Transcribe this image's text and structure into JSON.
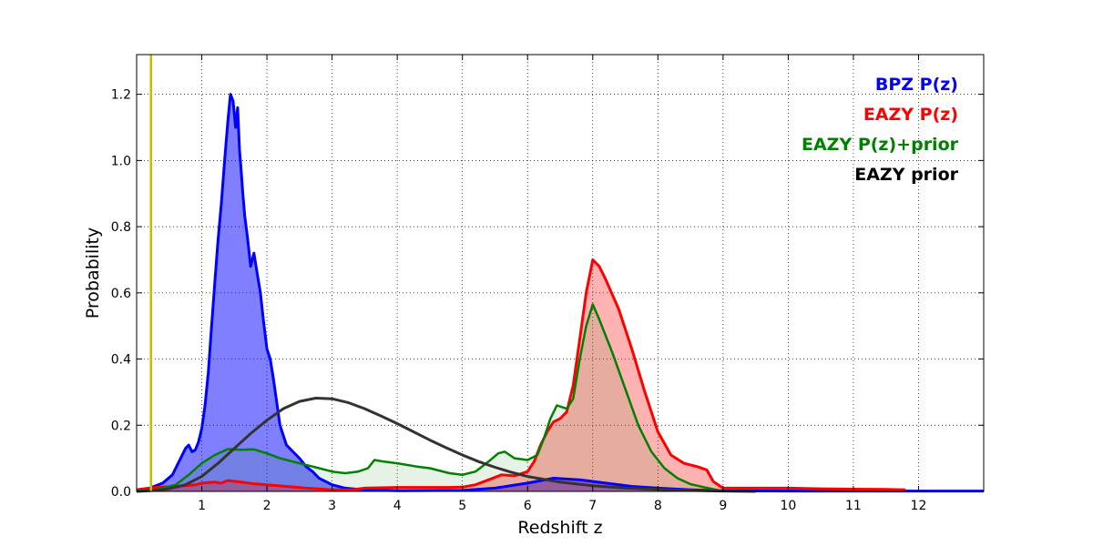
{
  "chart_data": {
    "type": "area",
    "xlabel": "Redshift z",
    "ylabel": "Probability",
    "xlim": [
      0,
      13
    ],
    "ylim": [
      0,
      1.32
    ],
    "x_ticks": [
      1,
      2,
      3,
      4,
      5,
      6,
      7,
      8,
      9,
      10,
      11,
      12
    ],
    "y_ticks": [
      0.0,
      0.2,
      0.4,
      0.6,
      0.8,
      1.0,
      1.2
    ],
    "y_tick_labels": [
      "0.0",
      "0.2",
      "0.4",
      "0.6",
      "0.8",
      "1.0",
      "1.2"
    ],
    "grid": true,
    "legend_placement": "top-right",
    "vertical_marker": {
      "x": 0.22,
      "color": "#bfbf00"
    },
    "series": [
      {
        "name": "BPZ P(z)",
        "color": "#0000ff",
        "fill": "#0000ff",
        "fill_opacity": 0.5,
        "stroke_width": 3,
        "points": [
          [
            0,
            0.005
          ],
          [
            0.2,
            0.01
          ],
          [
            0.4,
            0.025
          ],
          [
            0.55,
            0.05
          ],
          [
            0.65,
            0.09
          ],
          [
            0.75,
            0.13
          ],
          [
            0.8,
            0.14
          ],
          [
            0.85,
            0.12
          ],
          [
            0.9,
            0.125
          ],
          [
            0.95,
            0.15
          ],
          [
            1.0,
            0.19
          ],
          [
            1.05,
            0.26
          ],
          [
            1.1,
            0.36
          ],
          [
            1.15,
            0.5
          ],
          [
            1.2,
            0.63
          ],
          [
            1.25,
            0.76
          ],
          [
            1.3,
            0.87
          ],
          [
            1.35,
            1.0
          ],
          [
            1.4,
            1.12
          ],
          [
            1.44,
            1.2
          ],
          [
            1.48,
            1.18
          ],
          [
            1.52,
            1.1
          ],
          [
            1.55,
            1.16
          ],
          [
            1.58,
            1.03
          ],
          [
            1.6,
            0.98
          ],
          [
            1.63,
            0.9
          ],
          [
            1.66,
            0.83
          ],
          [
            1.7,
            0.77
          ],
          [
            1.75,
            0.68
          ],
          [
            1.8,
            0.72
          ],
          [
            1.85,
            0.66
          ],
          [
            1.9,
            0.6
          ],
          [
            1.95,
            0.51
          ],
          [
            2.0,
            0.43
          ],
          [
            2.05,
            0.4
          ],
          [
            2.1,
            0.34
          ],
          [
            2.15,
            0.27
          ],
          [
            2.2,
            0.2
          ],
          [
            2.3,
            0.14
          ],
          [
            2.4,
            0.12
          ],
          [
            2.5,
            0.1
          ],
          [
            2.6,
            0.075
          ],
          [
            2.7,
            0.06
          ],
          [
            2.8,
            0.04
          ],
          [
            3.0,
            0.02
          ],
          [
            3.2,
            0.01
          ],
          [
            3.5,
            0.005
          ],
          [
            4.0,
            0.002
          ],
          [
            5.0,
            0.003
          ],
          [
            5.5,
            0.01
          ],
          [
            6.0,
            0.025
          ],
          [
            6.4,
            0.04
          ],
          [
            6.8,
            0.035
          ],
          [
            7.2,
            0.025
          ],
          [
            7.6,
            0.015
          ],
          [
            8.0,
            0.01
          ],
          [
            8.5,
            0.005
          ],
          [
            9.0,
            0.002
          ],
          [
            10.0,
            0.001
          ],
          [
            13.0,
            0.001
          ]
        ]
      },
      {
        "name": "EAZY P(z)",
        "color": "#ff0000",
        "fill": "#ff0000",
        "fill_opacity": 0.3,
        "stroke_width": 3,
        "points": [
          [
            0,
            0.005
          ],
          [
            0.3,
            0.012
          ],
          [
            0.6,
            0.015
          ],
          [
            0.9,
            0.02
          ],
          [
            1.0,
            0.025
          ],
          [
            1.2,
            0.028
          ],
          [
            1.3,
            0.025
          ],
          [
            1.4,
            0.033
          ],
          [
            1.6,
            0.028
          ],
          [
            1.8,
            0.023
          ],
          [
            2.0,
            0.02
          ],
          [
            2.3,
            0.015
          ],
          [
            2.6,
            0.01
          ],
          [
            3.0,
            0.005
          ],
          [
            3.3,
            0.005
          ],
          [
            3.5,
            0.01
          ],
          [
            4.0,
            0.012
          ],
          [
            4.5,
            0.012
          ],
          [
            4.8,
            0.012
          ],
          [
            5.0,
            0.013
          ],
          [
            5.2,
            0.02
          ],
          [
            5.4,
            0.035
          ],
          [
            5.6,
            0.05
          ],
          [
            5.8,
            0.047
          ],
          [
            6.0,
            0.06
          ],
          [
            6.1,
            0.09
          ],
          [
            6.2,
            0.14
          ],
          [
            6.3,
            0.18
          ],
          [
            6.4,
            0.21
          ],
          [
            6.5,
            0.22
          ],
          [
            6.6,
            0.24
          ],
          [
            6.7,
            0.32
          ],
          [
            6.8,
            0.46
          ],
          [
            6.9,
            0.6
          ],
          [
            7.0,
            0.7
          ],
          [
            7.1,
            0.68
          ],
          [
            7.2,
            0.64
          ],
          [
            7.4,
            0.55
          ],
          [
            7.6,
            0.43
          ],
          [
            7.8,
            0.3
          ],
          [
            8.0,
            0.18
          ],
          [
            8.2,
            0.11
          ],
          [
            8.4,
            0.085
          ],
          [
            8.6,
            0.075
          ],
          [
            8.75,
            0.065
          ],
          [
            8.85,
            0.03
          ],
          [
            9.0,
            0.01
          ],
          [
            9.5,
            0.01
          ],
          [
            10.0,
            0.01
          ],
          [
            10.5,
            0.008
          ],
          [
            11.0,
            0.007
          ],
          [
            11.5,
            0.006
          ],
          [
            11.8,
            0.005
          ]
        ]
      },
      {
        "name": "EAZY P(z)+prior",
        "color": "#008000",
        "fill": "#008000",
        "fill_opacity": 0.1,
        "stroke_width": 2.5,
        "points": [
          [
            0,
            0.002
          ],
          [
            0.3,
            0.005
          ],
          [
            0.6,
            0.02
          ],
          [
            0.8,
            0.05
          ],
          [
            1.0,
            0.085
          ],
          [
            1.2,
            0.11
          ],
          [
            1.4,
            0.128
          ],
          [
            1.6,
            0.126
          ],
          [
            1.8,
            0.127
          ],
          [
            2.0,
            0.115
          ],
          [
            2.2,
            0.1
          ],
          [
            2.5,
            0.085
          ],
          [
            2.8,
            0.07
          ],
          [
            3.0,
            0.06
          ],
          [
            3.2,
            0.055
          ],
          [
            3.4,
            0.06
          ],
          [
            3.55,
            0.07
          ],
          [
            3.65,
            0.095
          ],
          [
            3.8,
            0.09
          ],
          [
            4.0,
            0.085
          ],
          [
            4.3,
            0.075
          ],
          [
            4.5,
            0.07
          ],
          [
            4.8,
            0.055
          ],
          [
            5.0,
            0.05
          ],
          [
            5.2,
            0.06
          ],
          [
            5.4,
            0.09
          ],
          [
            5.55,
            0.115
          ],
          [
            5.65,
            0.12
          ],
          [
            5.8,
            0.1
          ],
          [
            6.0,
            0.095
          ],
          [
            6.15,
            0.11
          ],
          [
            6.25,
            0.16
          ],
          [
            6.35,
            0.22
          ],
          [
            6.45,
            0.26
          ],
          [
            6.6,
            0.25
          ],
          [
            6.7,
            0.28
          ],
          [
            6.8,
            0.4
          ],
          [
            6.9,
            0.5
          ],
          [
            7.0,
            0.565
          ],
          [
            7.1,
            0.52
          ],
          [
            7.3,
            0.42
          ],
          [
            7.5,
            0.31
          ],
          [
            7.7,
            0.2
          ],
          [
            7.9,
            0.12
          ],
          [
            8.1,
            0.07
          ],
          [
            8.3,
            0.04
          ],
          [
            8.5,
            0.022
          ],
          [
            8.7,
            0.013
          ],
          [
            8.9,
            0.005
          ],
          [
            9.0,
            0.0
          ]
        ]
      },
      {
        "name": "EAZY prior",
        "color": "#333333",
        "fill": "none",
        "fill_opacity": 0,
        "stroke_width": 3,
        "points": [
          [
            0,
            0.0
          ],
          [
            0.3,
            0.003
          ],
          [
            0.5,
            0.008
          ],
          [
            0.75,
            0.02
          ],
          [
            1.0,
            0.045
          ],
          [
            1.25,
            0.085
          ],
          [
            1.5,
            0.13
          ],
          [
            1.75,
            0.175
          ],
          [
            2.0,
            0.215
          ],
          [
            2.25,
            0.25
          ],
          [
            2.5,
            0.272
          ],
          [
            2.75,
            0.282
          ],
          [
            3.0,
            0.28
          ],
          [
            3.25,
            0.268
          ],
          [
            3.5,
            0.25
          ],
          [
            3.75,
            0.228
          ],
          [
            4.0,
            0.205
          ],
          [
            4.25,
            0.18
          ],
          [
            4.5,
            0.155
          ],
          [
            4.75,
            0.132
          ],
          [
            5.0,
            0.11
          ],
          [
            5.25,
            0.09
          ],
          [
            5.5,
            0.073
          ],
          [
            5.75,
            0.058
          ],
          [
            6.0,
            0.045
          ],
          [
            6.5,
            0.028
          ],
          [
            7.0,
            0.017
          ],
          [
            7.5,
            0.01
          ],
          [
            8.0,
            0.006
          ],
          [
            8.5,
            0.003
          ],
          [
            9.0,
            0.001
          ],
          [
            9.5,
            0.0
          ]
        ]
      }
    ]
  }
}
